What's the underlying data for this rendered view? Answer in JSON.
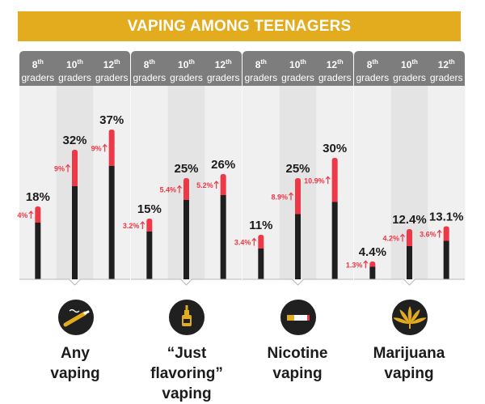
{
  "title": "VAPING AMONG TEENAGERS",
  "chart_data": {
    "type": "bar",
    "title": "VAPING AMONG TEENAGERS",
    "grade_labels": [
      {
        "num": "8",
        "sup": "th",
        "word": "graders"
      },
      {
        "num": "10",
        "sup": "th",
        "word": "graders"
      },
      {
        "num": "12",
        "sup": "th",
        "word": "graders"
      }
    ],
    "ylim": [
      0,
      42
    ],
    "groups": [
      {
        "name": "Any vaping",
        "label_lines": [
          "Any",
          "vaping"
        ],
        "icon": "vape-pen-icon",
        "values": [
          18,
          32,
          37
        ],
        "value_labels": [
          "18%",
          "32%",
          "37%"
        ],
        "increases": [
          4,
          9,
          9
        ],
        "increase_labels": [
          "4%",
          "9%",
          "9%"
        ]
      },
      {
        "name": "\"Just flavoring\" vaping",
        "label_lines": [
          "“Just flavoring”",
          "vaping"
        ],
        "icon": "flavor-bottle-icon",
        "values": [
          15,
          25,
          26
        ],
        "value_labels": [
          "15%",
          "25%",
          "26%"
        ],
        "increases": [
          3.2,
          5.4,
          5.2
        ],
        "increase_labels": [
          "3.2%",
          "5.4%",
          "5.2%"
        ]
      },
      {
        "name": "Nicotine vaping",
        "label_lines": [
          "Nicotine",
          "vaping"
        ],
        "icon": "cigarette-icon",
        "values": [
          11,
          25,
          30
        ],
        "value_labels": [
          "11%",
          "25%",
          "30%"
        ],
        "increases": [
          3.4,
          8.9,
          10.9
        ],
        "increase_labels": [
          "3.4%",
          "8.9%",
          "10.9%"
        ]
      },
      {
        "name": "Marijuana vaping",
        "label_lines": [
          "Marijuana",
          "vaping"
        ],
        "icon": "cannabis-leaf-icon",
        "values": [
          4.4,
          12.4,
          13.1
        ],
        "value_labels": [
          "4.4%",
          "12.4%",
          "13.1%"
        ],
        "increases": [
          1.3,
          4.2,
          3.6
        ],
        "increase_labels": [
          "1.3%",
          "4.2%",
          "3.6%"
        ]
      }
    ],
    "colors": {
      "bar": "#1f1f1f",
      "increase": "#ed3847",
      "accent": "#e3ab1e",
      "header": "#7d7d7d",
      "panel_light": "#f0f0f0",
      "panel_dark": "#e4e4e4",
      "icon_bg": "#202020"
    }
  }
}
